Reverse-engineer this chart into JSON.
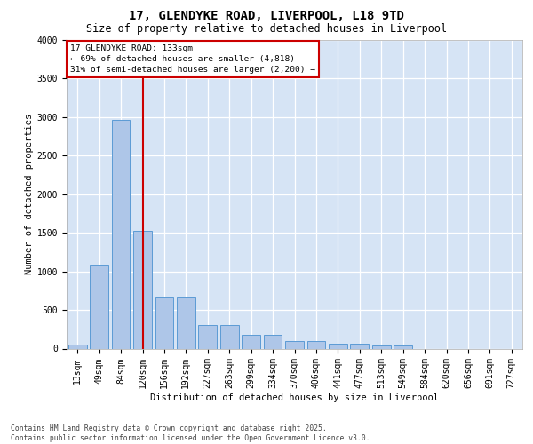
{
  "title": "17, GLENDYKE ROAD, LIVERPOOL, L18 9TD",
  "subtitle": "Size of property relative to detached houses in Liverpool",
  "xlabel": "Distribution of detached houses by size in Liverpool",
  "ylabel": "Number of detached properties",
  "categories": [
    "13sqm",
    "49sqm",
    "84sqm",
    "120sqm",
    "156sqm",
    "192sqm",
    "227sqm",
    "263sqm",
    "299sqm",
    "334sqm",
    "370sqm",
    "406sqm",
    "441sqm",
    "477sqm",
    "513sqm",
    "549sqm",
    "584sqm",
    "620sqm",
    "656sqm",
    "691sqm",
    "727sqm"
  ],
  "values": [
    55,
    1090,
    2960,
    1530,
    660,
    660,
    310,
    310,
    175,
    175,
    100,
    100,
    60,
    60,
    35,
    35,
    0,
    0,
    0,
    0,
    0
  ],
  "bar_color": "#aec6e8",
  "bar_edge_color": "#5b9bd5",
  "plot_bg_color": "#d6e4f5",
  "fig_bg_color": "#ffffff",
  "grid_color": "#ffffff",
  "vline_x_index": 3,
  "vline_color": "#cc0000",
  "annotation_text": "17 GLENDYKE ROAD: 133sqm\n← 69% of detached houses are smaller (4,818)\n31% of semi-detached houses are larger (2,200) →",
  "annotation_box_edge_color": "#cc0000",
  "annotation_box_bg": "#ffffff",
  "footnote": "Contains HM Land Registry data © Crown copyright and database right 2025.\nContains public sector information licensed under the Open Government Licence v3.0.",
  "ylim": [
    0,
    4000
  ],
  "yticks": [
    0,
    500,
    1000,
    1500,
    2000,
    2500,
    3000,
    3500,
    4000
  ],
  "title_fontsize": 10,
  "subtitle_fontsize": 8.5,
  "xlabel_fontsize": 7.5,
  "ylabel_fontsize": 7.5,
  "tick_fontsize": 7,
  "annot_fontsize": 6.8,
  "footnote_fontsize": 5.8
}
